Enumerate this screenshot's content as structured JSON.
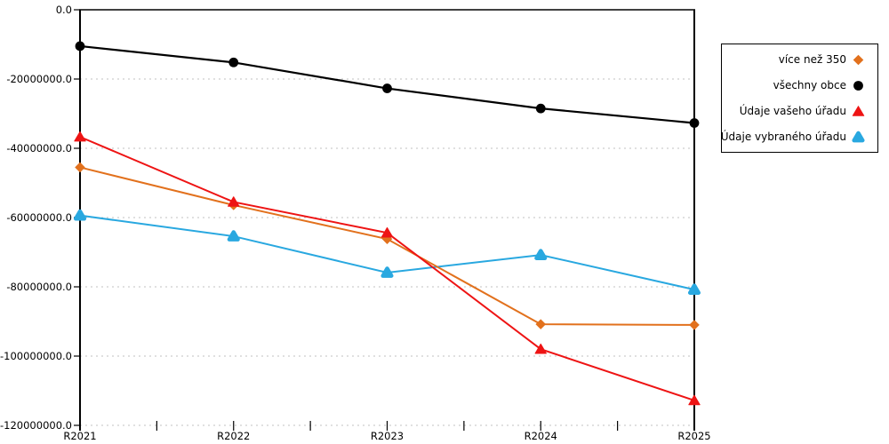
{
  "chart_data": {
    "type": "line",
    "categories": [
      "R2021",
      "R2022",
      "R2023",
      "R2024",
      "R2025"
    ],
    "series": [
      {
        "name": "více než 350",
        "color": "#E2711D",
        "marker": "diamond",
        "values": [
          -45500000,
          -56400000,
          -66200000,
          -90800000,
          -91000000
        ]
      },
      {
        "name": "všechny obce",
        "color": "#000000",
        "marker": "circle",
        "values": [
          -10500000,
          -15200000,
          -22700000,
          -28500000,
          -32700000
        ]
      },
      {
        "name": "Údaje vašeho úřadu",
        "color": "#EE1414",
        "marker": "triangle",
        "values": [
          -36700000,
          -55500000,
          -64400000,
          -98000000,
          -112800000
        ]
      },
      {
        "name": "Údaje vybraného úřadu",
        "color": "#29A8E0",
        "marker": "triangle-round",
        "values": [
          -59400000,
          -65400000,
          -75900000,
          -70800000,
          -80800000
        ]
      }
    ],
    "title": "",
    "xlabel": "",
    "ylabel": "",
    "ylim": [
      -120000000,
      0
    ],
    "ytick_step": 20000000,
    "y_tick_labels": [
      "0.0",
      "-20000000.0",
      "-40000000.0",
      "-60000000.0",
      "-80000000.0",
      "-100000000.0",
      "-120000000.0"
    ],
    "grid": "horizontal-dashed",
    "gridline_color": "#C0C0C0",
    "axis_color": "#000000",
    "legend_position": "top-right",
    "draw_order": [
      3,
      0,
      1,
      2
    ]
  }
}
